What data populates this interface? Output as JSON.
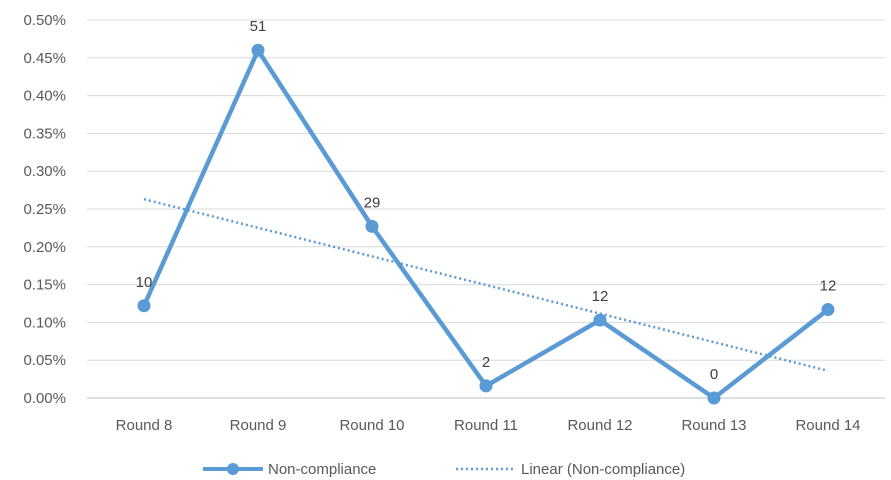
{
  "chart_data": {
    "type": "line",
    "categories": [
      "Round 8",
      "Round 9",
      "Round 10",
      "Round 11",
      "Round 12",
      "Round 13",
      "Round 14"
    ],
    "series": [
      {
        "name": "Non-compliance",
        "values": [
          0.00122,
          0.0046,
          0.00227,
          0.00016,
          0.00103,
          0.0,
          0.00117
        ],
        "data_labels": [
          "10",
          "51",
          "29",
          "2",
          "12",
          "0",
          "12"
        ],
        "color": "#5b9bd5"
      }
    ],
    "trendline": {
      "name": "Linear (Non-compliance)",
      "type": "linear",
      "start": 0.00263,
      "end": 0.00036,
      "color": "#5b9bd5"
    },
    "y_ticks": [
      "0.00%",
      "0.05%",
      "0.10%",
      "0.15%",
      "0.20%",
      "0.25%",
      "0.30%",
      "0.35%",
      "0.40%",
      "0.45%",
      "0.50%"
    ],
    "ylim": [
      0,
      0.005
    ],
    "grid": true,
    "legend_position": "bottom"
  }
}
